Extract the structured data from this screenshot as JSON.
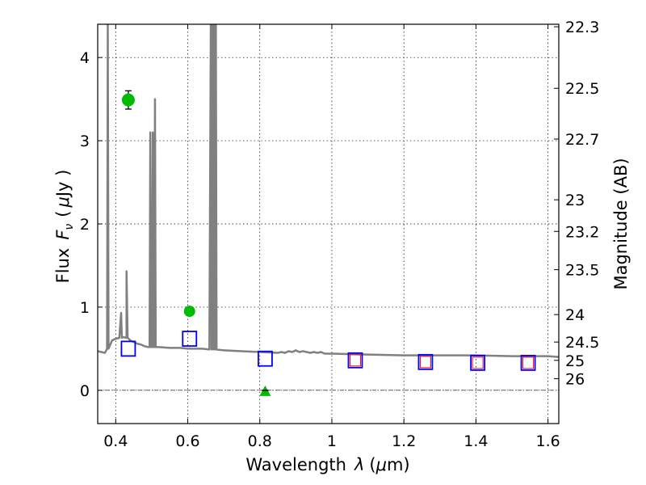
{
  "chart_data": {
    "type": "scatter",
    "xlabel_prefix": "Wavelength",
    "xlabel_var": "λ",
    "xlabel_unit_open": "(",
    "xlabel_unit_mu": "μ",
    "xlabel_unit_rest": "m)",
    "ylabel_prefix": "Flux",
    "ylabel_var": "F",
    "ylabel_sub": "ν",
    "ylabel_unit_open": "(",
    "ylabel_unit_mu": "μ",
    "ylabel_unit_rest": "Jy )",
    "ylabel_right": "Magnitude (AB)",
    "xlim": [
      0.35,
      1.63
    ],
    "ylim": [
      -0.4,
      4.4
    ],
    "grid": true,
    "x_ticks": [
      0.4,
      0.6,
      0.8,
      1.0,
      1.2,
      1.4,
      1.6
    ],
    "x_tick_labels": [
      "0.4",
      "0.6",
      "0.8",
      "1",
      "1.2",
      "1.4",
      "1.6"
    ],
    "y_ticks": [
      0,
      1,
      2,
      3,
      4
    ],
    "y_tick_labels": [
      "0",
      "1",
      "2",
      "3",
      "4"
    ],
    "mag_ticks": [
      {
        "label": "22.3",
        "flux": 4.37
      },
      {
        "label": "22.5",
        "flux": 3.63
      },
      {
        "label": "22.7",
        "flux": 3.02
      },
      {
        "label": "23",
        "flux": 2.29
      },
      {
        "label": "23.2",
        "flux": 1.91
      },
      {
        "label": "23.5",
        "flux": 1.45
      },
      {
        "label": "24",
        "flux": 0.91
      },
      {
        "label": "24.5",
        "flux": 0.58
      },
      {
        "label": "25",
        "flux": 0.36
      },
      {
        "label": "26",
        "flux": 0.14
      }
    ],
    "series": [
      {
        "kind": "line",
        "color": "#808080",
        "x": [
          0.35,
          0.37,
          0.376,
          0.378,
          0.38,
          0.385,
          0.39,
          0.4,
          0.41,
          0.415,
          0.417,
          0.42,
          0.43,
          0.43,
          0.433,
          0.436,
          0.44,
          0.45,
          0.46,
          0.47,
          0.48,
          0.49,
          0.494,
          0.496,
          0.498,
          0.501,
          0.503,
          0.505,
          0.507,
          0.509,
          0.511,
          0.52,
          0.55,
          0.58,
          0.6,
          0.62,
          0.64,
          0.66,
          0.66,
          0.664,
          0.666,
          0.669,
          0.671,
          0.674,
          0.676,
          0.678,
          0.68,
          0.7,
          0.75,
          0.8,
          0.85,
          0.86,
          0.87,
          0.88,
          0.89,
          0.9,
          0.91,
          0.92,
          0.93,
          0.94,
          0.95,
          0.96,
          0.97,
          0.98,
          1.0,
          1.1,
          1.2,
          1.3,
          1.4,
          1.5,
          1.6,
          1.63
        ],
        "y": [
          0.47,
          0.45,
          0.5,
          4.4,
          0.5,
          0.55,
          0.6,
          0.62,
          0.63,
          0.93,
          0.63,
          0.64,
          0.63,
          1.43,
          0.63,
          0.62,
          0.6,
          0.58,
          0.56,
          0.55,
          0.53,
          0.52,
          0.52,
          3.1,
          0.52,
          0.52,
          3.1,
          0.52,
          0.52,
          3.5,
          0.52,
          0.52,
          0.51,
          0.51,
          0.5,
          0.5,
          0.5,
          0.49,
          0.49,
          4.4,
          0.49,
          4.4,
          0.49,
          4.4,
          0.49,
          4.4,
          0.49,
          0.48,
          0.47,
          0.46,
          0.45,
          0.46,
          0.45,
          0.47,
          0.46,
          0.48,
          0.46,
          0.47,
          0.46,
          0.45,
          0.46,
          0.45,
          0.46,
          0.44,
          0.44,
          0.43,
          0.42,
          0.42,
          0.42,
          0.41,
          0.41,
          0.4
        ]
      },
      {
        "kind": "blue_squares",
        "color": "#0000ff",
        "x": [
          0.435,
          0.605,
          0.815,
          1.065,
          1.26,
          1.405,
          1.545
        ],
        "y": [
          0.5,
          0.62,
          0.38,
          0.36,
          0.34,
          0.33,
          0.33
        ]
      },
      {
        "kind": "red_squares",
        "color": "#ff0000",
        "x": [
          1.065,
          1.26,
          1.405,
          1.545
        ],
        "y": [
          0.36,
          0.34,
          0.33,
          0.33
        ]
      },
      {
        "kind": "green_circles",
        "color": "#00bb00",
        "x": [
          0.435,
          0.605
        ],
        "y": [
          3.49,
          0.95
        ],
        "yerr": [
          0.11,
          0.05
        ]
      },
      {
        "kind": "green_triangle",
        "color": "#00bb00",
        "x": [
          0.815
        ],
        "y": [
          0.0
        ],
        "yerr": [
          0.02
        ]
      }
    ]
  }
}
